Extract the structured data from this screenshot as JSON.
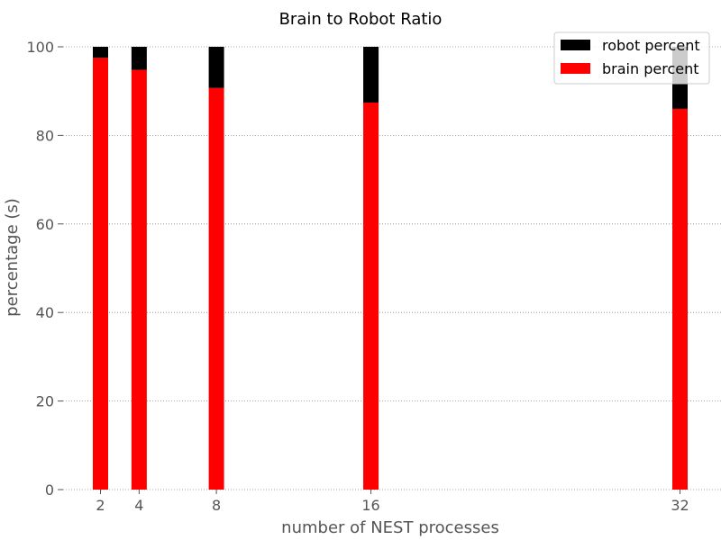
{
  "chart_data": {
    "type": "bar",
    "stacked": true,
    "title": "Brain to Robot Ratio",
    "xlabel": "number of NEST processes",
    "ylabel": "percentage (s)",
    "x": [
      2,
      4,
      8,
      16,
      32
    ],
    "xticks": [
      "2",
      "4",
      "8",
      "16",
      "32"
    ],
    "ylim": [
      0,
      100
    ],
    "yticks": [
      "0",
      "20",
      "40",
      "60",
      "80",
      "100"
    ],
    "grid": "y-dotted",
    "legend_position": "top-right",
    "series": [
      {
        "name": "brain percent",
        "color": "#ff0000",
        "values": [
          97.5,
          94.8,
          90.7,
          87.4,
          86.0
        ]
      },
      {
        "name": "robot percent",
        "color": "#000000",
        "values": [
          2.5,
          5.2,
          9.3,
          12.6,
          14.0
        ]
      }
    ]
  },
  "legend": {
    "items": [
      {
        "label": "robot percent",
        "color": "#000000"
      },
      {
        "label": "brain percent",
        "color": "#ff0000"
      }
    ]
  }
}
